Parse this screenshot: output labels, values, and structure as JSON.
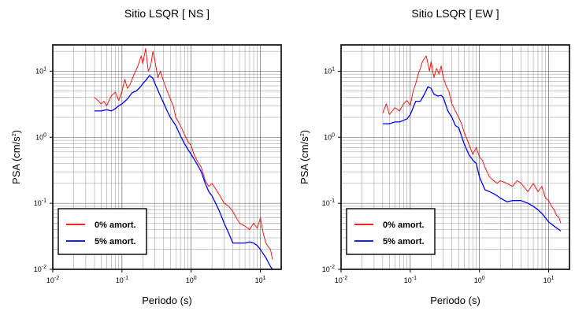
{
  "chart_data": [
    {
      "type": "line",
      "title": "Sitio LSQR [ NS ]",
      "xlabel": "Periodo (s)",
      "ylabel_main": "PSA (cm/s",
      "ylabel_sup": "2",
      "ylabel_close": ")",
      "x_scale": "log",
      "y_scale": "log",
      "xlim": [
        0.01,
        20
      ],
      "ylim": [
        0.01,
        25
      ],
      "x_ticks": [
        {
          "value": 0.01,
          "base": "10",
          "exp": "-2"
        },
        {
          "value": 0.1,
          "base": "10",
          "exp": "-1"
        },
        {
          "value": 1,
          "base": "10",
          "exp": "0"
        },
        {
          "value": 10,
          "base": "10",
          "exp": "1"
        }
      ],
      "y_ticks": [
        {
          "value": 0.01,
          "base": "10",
          "exp": "-2"
        },
        {
          "value": 0.1,
          "base": "10",
          "exp": "-1"
        },
        {
          "value": 1,
          "base": "10",
          "exp": "0"
        },
        {
          "value": 10,
          "base": "10",
          "exp": "1"
        }
      ],
      "grid": true,
      "legend_position": "bottom-left",
      "series": [
        {
          "name": "0% amort.",
          "color": "#ff0000",
          "x": [
            0.04,
            0.045,
            0.05,
            0.055,
            0.06,
            0.07,
            0.08,
            0.09,
            0.1,
            0.11,
            0.12,
            0.13,
            0.15,
            0.17,
            0.19,
            0.2,
            0.22,
            0.24,
            0.26,
            0.28,
            0.3,
            0.33,
            0.36,
            0.4,
            0.45,
            0.5,
            0.55,
            0.6,
            0.7,
            0.8,
            0.9,
            1.0,
            1.1,
            1.2,
            1.4,
            1.6,
            1.8,
            2.0,
            2.3,
            2.6,
            3.0,
            3.5,
            4.0,
            4.5,
            5.0,
            6.0,
            7.0,
            8.0,
            9.0,
            10.0,
            11.0,
            12.0,
            13.0,
            14.0,
            15.0
          ],
          "y": [
            4.0,
            3.6,
            3.2,
            3.5,
            3.0,
            4.2,
            4.8,
            3.6,
            5.0,
            7.5,
            5.5,
            6.2,
            9.0,
            12.0,
            17.0,
            13.0,
            22.0,
            10.0,
            12.0,
            20.0,
            14.0,
            8.0,
            10.0,
            7.0,
            5.0,
            3.8,
            3.0,
            2.0,
            1.5,
            1.1,
            0.85,
            0.75,
            0.55,
            0.45,
            0.35,
            0.22,
            0.18,
            0.2,
            0.16,
            0.13,
            0.1,
            0.09,
            0.075,
            0.06,
            0.05,
            0.045,
            0.04,
            0.05,
            0.042,
            0.06,
            0.035,
            0.025,
            0.022,
            0.02,
            0.014
          ]
        },
        {
          "name": "5% amort.",
          "color": "#0000ff",
          "x": [
            0.04,
            0.05,
            0.06,
            0.07,
            0.08,
            0.09,
            0.1,
            0.12,
            0.14,
            0.16,
            0.18,
            0.2,
            0.22,
            0.25,
            0.28,
            0.3,
            0.35,
            0.4,
            0.45,
            0.5,
            0.6,
            0.7,
            0.8,
            0.9,
            1.0,
            1.2,
            1.4,
            1.6,
            1.8,
            2.0,
            2.5,
            3.0,
            3.5,
            4.0,
            5.0,
            6.0,
            7.0,
            8.0,
            9.0,
            10.0,
            12.0,
            14.0,
            15.0
          ],
          "y": [
            2.5,
            2.5,
            2.6,
            2.5,
            2.7,
            3.0,
            3.2,
            3.8,
            4.7,
            5.0,
            5.6,
            6.5,
            7.2,
            8.6,
            7.8,
            6.5,
            4.5,
            3.3,
            2.5,
            2.0,
            1.5,
            1.05,
            0.8,
            0.65,
            0.55,
            0.4,
            0.3,
            0.2,
            0.15,
            0.13,
            0.08,
            0.05,
            0.035,
            0.025,
            0.025,
            0.025,
            0.026,
            0.025,
            0.023,
            0.02,
            0.015,
            0.011,
            0.01
          ]
        }
      ]
    },
    {
      "type": "line",
      "title": "Sitio LSQR [ EW ]",
      "xlabel": "Periodo (s)",
      "ylabel_main": "PSA (cm/s",
      "ylabel_sup": "2",
      "ylabel_close": ")",
      "x_scale": "log",
      "y_scale": "log",
      "xlim": [
        0.01,
        20
      ],
      "ylim": [
        0.01,
        25
      ],
      "x_ticks": [
        {
          "value": 0.01,
          "base": "10",
          "exp": "-2"
        },
        {
          "value": 0.1,
          "base": "10",
          "exp": "-1"
        },
        {
          "value": 1,
          "base": "10",
          "exp": "0"
        },
        {
          "value": 10,
          "base": "10",
          "exp": "1"
        }
      ],
      "y_ticks": [
        {
          "value": 0.01,
          "base": "10",
          "exp": "-2"
        },
        {
          "value": 0.1,
          "base": "10",
          "exp": "-1"
        },
        {
          "value": 1,
          "base": "10",
          "exp": "0"
        },
        {
          "value": 10,
          "base": "10",
          "exp": "1"
        }
      ],
      "grid": true,
      "legend_position": "bottom-left",
      "series": [
        {
          "name": "0% amort.",
          "color": "#ff0000",
          "x": [
            0.04,
            0.045,
            0.05,
            0.055,
            0.06,
            0.07,
            0.08,
            0.09,
            0.1,
            0.11,
            0.12,
            0.13,
            0.14,
            0.15,
            0.17,
            0.19,
            0.2,
            0.22,
            0.24,
            0.26,
            0.28,
            0.3,
            0.33,
            0.36,
            0.4,
            0.45,
            0.5,
            0.55,
            0.6,
            0.7,
            0.8,
            0.9,
            1.0,
            1.1,
            1.2,
            1.4,
            1.6,
            1.8,
            2.0,
            2.5,
            3.0,
            3.5,
            4.0,
            5.0,
            6.0,
            7.0,
            8.0,
            9.0,
            10.0,
            11.0,
            12.0,
            13.0,
            14.0,
            15.0
          ],
          "y": [
            2.3,
            3.2,
            2.2,
            2.5,
            2.8,
            2.5,
            3.2,
            3.6,
            3.0,
            5.0,
            6.5,
            9.0,
            11.0,
            14.0,
            17.0,
            10.0,
            14.0,
            8.0,
            11.0,
            9.0,
            12.0,
            8.0,
            6.0,
            5.0,
            3.2,
            2.5,
            2.0,
            1.6,
            1.2,
            0.8,
            0.55,
            0.7,
            0.5,
            0.45,
            0.35,
            0.25,
            0.22,
            0.2,
            0.22,
            0.2,
            0.18,
            0.22,
            0.2,
            0.15,
            0.2,
            0.15,
            0.18,
            0.12,
            0.11,
            0.09,
            0.08,
            0.065,
            0.062,
            0.05
          ]
        },
        {
          "name": "5% amort.",
          "color": "#0000ff",
          "x": [
            0.04,
            0.05,
            0.06,
            0.07,
            0.08,
            0.09,
            0.1,
            0.12,
            0.14,
            0.16,
            0.18,
            0.2,
            0.22,
            0.25,
            0.28,
            0.3,
            0.35,
            0.4,
            0.45,
            0.5,
            0.6,
            0.7,
            0.8,
            0.9,
            1.0,
            1.2,
            1.4,
            1.6,
            1.8,
            2.0,
            2.5,
            3.0,
            3.5,
            4.0,
            5.0,
            6.0,
            7.0,
            8.0,
            9.0,
            10.0,
            12.0,
            14.0,
            15.0
          ],
          "y": [
            1.6,
            1.6,
            1.7,
            1.7,
            1.8,
            1.9,
            2.2,
            3.5,
            3.5,
            4.5,
            5.8,
            5.5,
            4.5,
            4.2,
            4.3,
            4.0,
            2.5,
            2.0,
            1.5,
            1.4,
            0.8,
            0.55,
            0.45,
            0.4,
            0.25,
            0.16,
            0.15,
            0.14,
            0.13,
            0.12,
            0.105,
            0.11,
            0.11,
            0.11,
            0.1,
            0.09,
            0.08,
            0.07,
            0.06,
            0.052,
            0.045,
            0.04,
            0.038
          ]
        }
      ]
    }
  ]
}
